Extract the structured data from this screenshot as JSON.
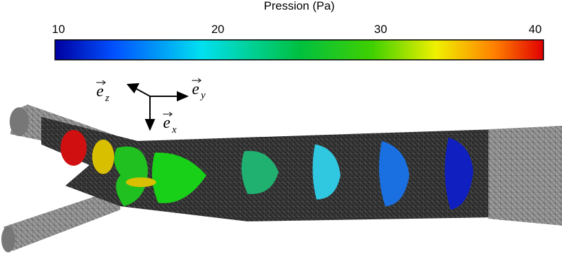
{
  "colorbar": {
    "title": "Pression (Pa)",
    "lim": [
      10,
      40
    ],
    "ticks": [
      10,
      20,
      30,
      40
    ]
  },
  "axes": [
    {
      "symbol": "e",
      "subscript": "z"
    },
    {
      "symbol": "e",
      "subscript": "y"
    },
    {
      "symbol": "e",
      "subscript": "x"
    }
  ]
}
